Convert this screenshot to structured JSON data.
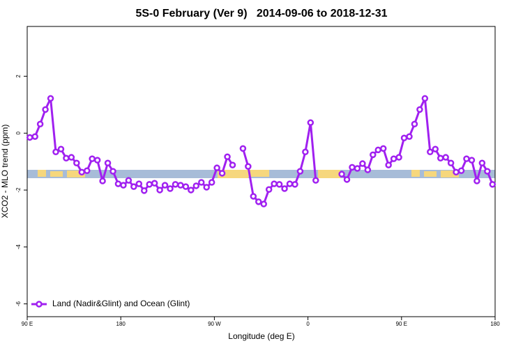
{
  "chart_data": {
    "type": "line",
    "title": "5S-0 February (Ver 9)   2014-09-06 to 2018-12-31",
    "x_label": "Longitude (deg E)",
    "y_label": "XCO2 - MLO trend (ppm)",
    "xlim": [
      90,
      540
    ],
    "ylim": [
      -6.45,
      3.75
    ],
    "xticks": [
      {
        "value": 90,
        "label": "90 E"
      },
      {
        "value": 180,
        "label": "180"
      },
      {
        "value": 270,
        "label": "90 W"
      },
      {
        "value": 360,
        "label": "0"
      },
      {
        "value": 450,
        "label": "90 E"
      },
      {
        "value": 540,
        "label": "180"
      }
    ],
    "yticks": [
      2,
      0,
      -2,
      -4,
      -6
    ],
    "legend": "bottom-left",
    "x": [
      92.5,
      97.5,
      102.5,
      107.5,
      112.5,
      117.5,
      122.5,
      127.5,
      132.5,
      137.5,
      142.5,
      147.5,
      152.5,
      157.5,
      162.5,
      167.5,
      172.5,
      177.5,
      182.5,
      187.5,
      192.5,
      197.5,
      202.5,
      207.5,
      212.5,
      217.5,
      222.5,
      227.5,
      232.5,
      237.5,
      242.5,
      247.5,
      252.5,
      257.5,
      262.5,
      267.5,
      272.5,
      277.5,
      282.5,
      287.5,
      292.5,
      297.5,
      302.5,
      307.5,
      312.5,
      317.5,
      322.5,
      327.5,
      332.5,
      337.5,
      342.5,
      347.5,
      352.5,
      357.5,
      362.5,
      367.5,
      372.5,
      377.5,
      382.5,
      387.5,
      392.5,
      397.5,
      402.5,
      407.5,
      412.5,
      417.5,
      422.5,
      427.5,
      432.5,
      437.5,
      442.5,
      447.5,
      452.5,
      457.5,
      462.5,
      467.5,
      472.5,
      477.5,
      482.5,
      487.5,
      492.5,
      497.5,
      502.5,
      507.5,
      512.5,
      517.5,
      522.5,
      527.5,
      532.5,
      537.5
    ],
    "series": [
      {
        "name": "Land (Nadir&Glint) and Ocean (Glint)",
        "color": "#a020f0",
        "values": [
          -0.15,
          -0.12,
          0.32,
          0.83,
          1.22,
          -0.66,
          -0.56,
          -0.88,
          -0.85,
          -1.05,
          -1.37,
          -1.32,
          -0.9,
          -0.95,
          -1.68,
          -1.05,
          -1.34,
          -1.78,
          -1.83,
          -1.66,
          -1.88,
          -1.78,
          -2.02,
          -1.8,
          -1.76,
          -2.0,
          -1.83,
          -1.95,
          -1.8,
          -1.83,
          -1.88,
          -2.0,
          -1.85,
          -1.73,
          -1.9,
          -1.73,
          -1.22,
          -1.41,
          -0.83,
          -1.12,
          null,
          -0.54,
          -1.17,
          -2.22,
          -2.41,
          -2.49,
          -1.98,
          -1.78,
          -1.8,
          -1.95,
          -1.78,
          -1.8,
          -1.34,
          -0.66,
          0.37,
          -1.66,
          null,
          null,
          null,
          null,
          -1.44,
          -1.63,
          -1.2,
          -1.24,
          -1.07,
          -1.29,
          -0.76,
          -0.59,
          -0.54,
          -1.12,
          -0.9,
          -0.85,
          -0.17,
          -0.12,
          0.32,
          0.83,
          1.22,
          -0.66,
          -0.56,
          -0.88,
          -0.85,
          -1.05,
          -1.37,
          -1.32,
          -0.9,
          -0.95,
          -1.68,
          -1.05,
          -1.34,
          -1.8
        ]
      }
    ]
  }
}
